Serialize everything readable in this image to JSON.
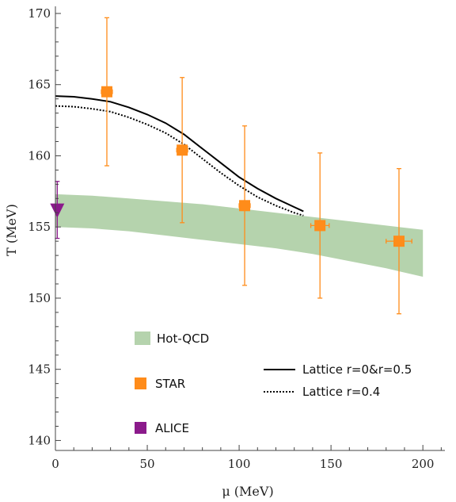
{
  "chart_data": {
    "type": "scatter",
    "xlabel": "μ (MeV)",
    "ylabel": "T (MeV)",
    "xlim": [
      0,
      212
    ],
    "ylim": [
      139.3,
      170.5
    ],
    "x_ticks": [
      0,
      50,
      100,
      150,
      200
    ],
    "y_ticks": [
      140,
      145,
      150,
      155,
      160,
      165,
      170
    ],
    "grid": false,
    "colors": {
      "band": "#b5d3ad",
      "star": "#ff8c1a",
      "alice": "#8b1a8b",
      "line": "#000000"
    },
    "band": {
      "name": "Hot-QCD",
      "x": [
        0,
        20,
        40,
        60,
        80,
        100,
        120,
        140,
        160,
        180,
        200
      ],
      "upper": [
        157.3,
        157.2,
        157.0,
        156.8,
        156.6,
        156.3,
        156.0,
        155.7,
        155.4,
        155.1,
        154.8
      ],
      "lower": [
        155.0,
        154.9,
        154.7,
        154.4,
        154.1,
        153.8,
        153.5,
        153.1,
        152.6,
        152.1,
        151.5
      ]
    },
    "lines": [
      {
        "name": "Lattice r=0&r=0.5",
        "style": "solid",
        "x": [
          0,
          10,
          20,
          30,
          40,
          50,
          60,
          70,
          80,
          90,
          100,
          110,
          120,
          130,
          135
        ],
        "y": [
          164.2,
          164.15,
          164.0,
          163.8,
          163.4,
          162.9,
          162.3,
          161.5,
          160.5,
          159.5,
          158.5,
          157.7,
          157.0,
          156.4,
          156.1
        ]
      },
      {
        "name": "Lattice r=0.4",
        "style": "dotted",
        "x": [
          0,
          10,
          20,
          30,
          40,
          50,
          60,
          70,
          80,
          90,
          100,
          110,
          120,
          130,
          135
        ],
        "y": [
          163.5,
          163.45,
          163.3,
          163.1,
          162.7,
          162.2,
          161.6,
          160.8,
          159.8,
          158.8,
          157.9,
          157.1,
          156.5,
          156.0,
          155.8
        ]
      }
    ],
    "series": [
      {
        "name": "STAR",
        "marker": "square",
        "points": [
          {
            "x": 28,
            "y": 164.5,
            "xerr": 3,
            "yerr": 5.2
          },
          {
            "x": 69,
            "y": 160.4,
            "xerr": 3,
            "yerr": 5.1
          },
          {
            "x": 103,
            "y": 156.5,
            "xerr": 3,
            "yerr": 5.6
          },
          {
            "x": 144,
            "y": 155.1,
            "xerr": 5,
            "yerr": 5.1
          },
          {
            "x": 187,
            "y": 154.0,
            "xerr": 7,
            "yerr": 5.1
          }
        ]
      },
      {
        "name": "ALICE",
        "marker": "triangle-down",
        "points": [
          {
            "x": 1,
            "y": 156.2,
            "xerr": 0,
            "yerr": 2.0
          }
        ]
      }
    ],
    "legend": {
      "hotqcd_label": "Hot-QCD",
      "star_label": "STAR",
      "alice_label": "ALICE",
      "lattice1_label": "Lattice r=0&r=0.5",
      "lattice2_label": "Lattice r=0.4"
    }
  }
}
